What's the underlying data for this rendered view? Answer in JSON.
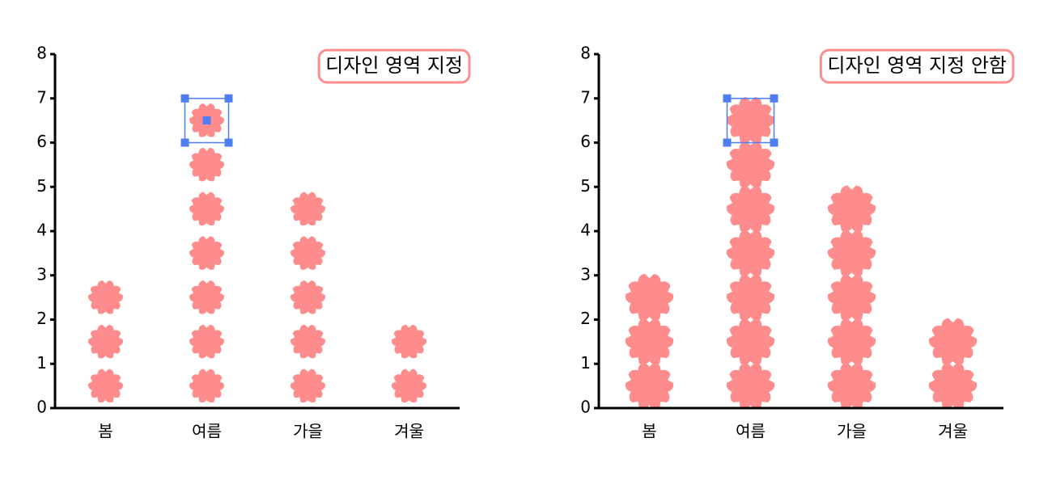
{
  "chart_data": [
    {
      "type": "pictograph",
      "annotation": "디자인 영역 지정",
      "categories": [
        "봄",
        "여름",
        "가을",
        "겨울"
      ],
      "values": [
        3,
        7,
        5,
        2
      ],
      "color": "#ff8c8c",
      "ylim": [
        0,
        8
      ],
      "yticks": [
        0,
        1,
        2,
        3,
        4,
        5,
        6,
        7,
        8
      ]
    },
    {
      "type": "pictograph",
      "annotation": "디자인 영역 지정 안함",
      "categories": [
        "봄",
        "여름",
        "가을",
        "겨울"
      ],
      "values": [
        3,
        7,
        5,
        2
      ],
      "color": "#ff8c8c",
      "ylim": [
        0,
        8
      ],
      "yticks": [
        0,
        1,
        2,
        3,
        4,
        5,
        6,
        7,
        8
      ]
    }
  ]
}
